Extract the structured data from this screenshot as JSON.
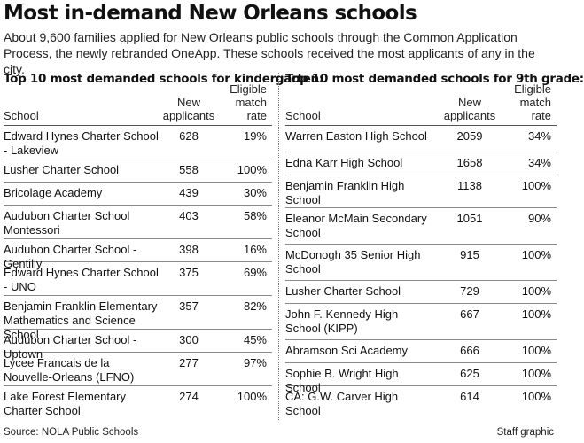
{
  "title": "Most in-demand New Orleans schools",
  "subtitle": "About 9,600 families applied for New Orleans public schools through the Common Application Process, the newly rebranded OneApp. These schools received the most applicants of any in the city.",
  "kindergarten": {
    "heading": "Top 10 most demanded schools for kindergarten:",
    "columns": {
      "school": "School",
      "applicants": "New applicants",
      "rate": "Eligible match rate"
    },
    "rows": [
      {
        "school": "Edward Hynes Charter School - Lakeview",
        "applicants": "628",
        "rate": "19%"
      },
      {
        "school": "Lusher Charter School",
        "applicants": "558",
        "rate": "100%"
      },
      {
        "school": "Bricolage Academy",
        "applicants": "439",
        "rate": "30%"
      },
      {
        "school": "Audubon Charter School Montessori",
        "applicants": "403",
        "rate": "58%"
      },
      {
        "school": "Audubon Charter School - Gentilly",
        "applicants": "398",
        "rate": "16%"
      },
      {
        "school": "Edward Hynes Charter School - UNO",
        "applicants": "375",
        "rate": "69%"
      },
      {
        "school": "Benjamin Franklin Elementary Mathematics and Science School",
        "applicants": "357",
        "rate": "82%"
      },
      {
        "school": "Audubon Charter School - Uptown",
        "applicants": "300",
        "rate": "45%"
      },
      {
        "school": "Lycee Francais de la Nouvelle-Orleans (LFNO)",
        "applicants": "277",
        "rate": "97%"
      },
      {
        "school": "Lake Forest Elementary Charter School",
        "applicants": "274",
        "rate": "100%"
      }
    ]
  },
  "ninth": {
    "heading": "Top 10 most demanded schools for 9th grade:",
    "columns": {
      "school": "School",
      "applicants": "New applicants",
      "rate": "Eligible match rate"
    },
    "rows": [
      {
        "school": "Warren Easton High School",
        "applicants": "2059",
        "rate": "34%"
      },
      {
        "school": "Edna Karr High School",
        "applicants": "1658",
        "rate": "34%"
      },
      {
        "school": "Benjamin Franklin High School",
        "applicants": "1138",
        "rate": "100%"
      },
      {
        "school": "Eleanor McMain Secondary School",
        "applicants": "1051",
        "rate": "90%"
      },
      {
        "school": "McDonogh 35 Senior High School",
        "applicants": "915",
        "rate": "100%"
      },
      {
        "school": "Lusher Charter School",
        "applicants": "729",
        "rate": "100%"
      },
      {
        "school": "John F. Kennedy High School (KIPP)",
        "applicants": "667",
        "rate": "100%"
      },
      {
        "school": "Abramson Sci Academy",
        "applicants": "666",
        "rate": "100%"
      },
      {
        "school": "Sophie B. Wright High School",
        "applicants": "625",
        "rate": "100%"
      },
      {
        "school": "CA: G.W. Carver High School",
        "applicants": "614",
        "rate": "100%"
      }
    ]
  },
  "footer": {
    "source": "Source: NOLA Public Schools",
    "credit": "Staff graphic"
  }
}
